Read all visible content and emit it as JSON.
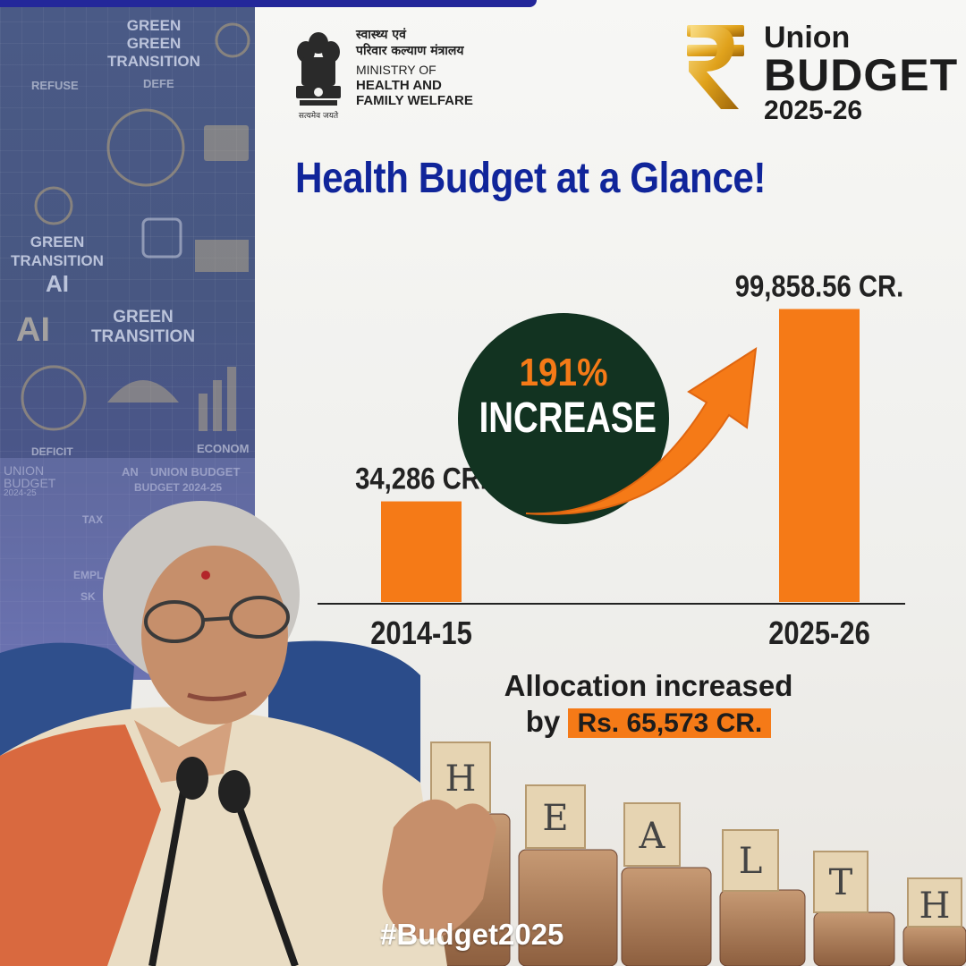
{
  "header": {
    "ministry_hindi_line1": "स्वास्थ्य एवं",
    "ministry_hindi_line2": "परिवार कल्याण मंत्रालय",
    "ministry_en_line1": "MINISTRY OF",
    "ministry_en_line2": "HEALTH AND",
    "ministry_en_line3": "FAMILY WELFARE",
    "emblem_motto": "सत्यमेव जयते",
    "budget_logo": {
      "line1": "Union",
      "line2": "BUDGET",
      "line3": "2025-26"
    }
  },
  "title": "Health Budget at a Glance!",
  "badge": {
    "percent": "191%",
    "text": "INCREASE"
  },
  "allocation": {
    "line1": "Allocation increased",
    "prefix": "by",
    "amount": "Rs. 65,573 CR."
  },
  "hashtag": "#Budget2025",
  "collage": {
    "texts": [
      "GREEN",
      "GREEN",
      "TRANSITION",
      "REFUSE",
      "DEFE",
      "GREEN",
      "TRANSITION",
      "AI",
      "AI",
      "GREEN",
      "TRANSITION",
      "DEFICIT",
      "ECONOM",
      "UNION",
      "BUDGET",
      "2024-25",
      "AN",
      "UNION BUDGET",
      "BUDGET 2024-25",
      "TAX",
      "EMPL",
      "SK"
    ]
  },
  "coin_letters": [
    "H",
    "E",
    "A",
    "L",
    "T",
    "H"
  ],
  "colors": {
    "bar": "#f57a17",
    "title": "#10259a",
    "circle": "#123321",
    "arrow": "#f57a17"
  },
  "chart_data": {
    "type": "bar",
    "categories": [
      "2014-15",
      "2025-26"
    ],
    "values": [
      34286,
      99858.56
    ],
    "value_labels": [
      "34,286 CR.",
      "99,858.56 CR."
    ],
    "title": "Health Budget at a Glance!",
    "xlabel": "",
    "ylabel": "",
    "ylim": [
      0,
      100000
    ],
    "grid": false
  }
}
